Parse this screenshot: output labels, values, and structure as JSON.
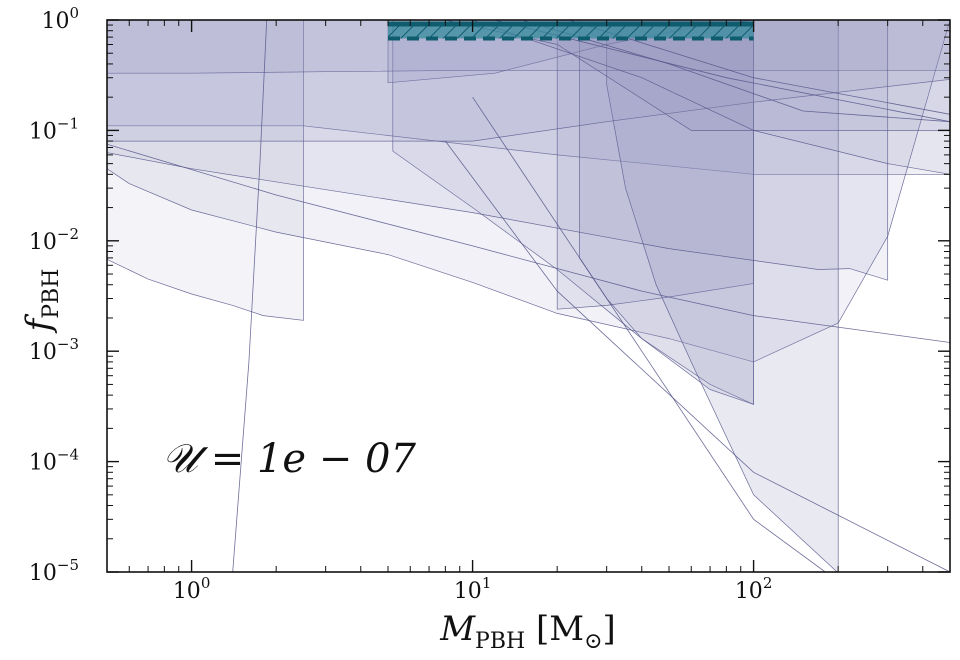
{
  "chart_data": {
    "type": "area",
    "x_scale": "log",
    "y_scale": "log",
    "xlim": [
      0.5,
      500
    ],
    "ylim": [
      1e-05,
      1
    ],
    "xlabel": {
      "main": "M",
      "sub": "PBH",
      "unit_open": " [M",
      "unit_sub": "⊙",
      "unit_close": "]"
    },
    "ylabel": {
      "main": "f",
      "sub": "PBH"
    },
    "x_ticks": [
      {
        "value": 1,
        "base": "10",
        "exp": "0"
      },
      {
        "value": 10,
        "base": "10",
        "exp": "1"
      },
      {
        "value": 100,
        "base": "10",
        "exp": "2"
      }
    ],
    "y_ticks": [
      {
        "value": 1e-05,
        "base": "10",
        "exp": "−5"
      },
      {
        "value": 0.0001,
        "base": "10",
        "exp": "−4"
      },
      {
        "value": 0.001,
        "base": "10",
        "exp": "−3"
      },
      {
        "value": 0.01,
        "base": "10",
        "exp": "−2"
      },
      {
        "value": 0.1,
        "base": "10",
        "exp": "−1"
      },
      {
        "value": 1,
        "base": "10",
        "exp": "0"
      }
    ],
    "annotation": "𝒰 = 1e − 07",
    "colors": {
      "constraint_fill": "#8f8fbd",
      "constraint_line": "#55558a",
      "band_fill": "#1f7a8c",
      "band_line": "#0f5c6e"
    },
    "constraints": [
      {
        "opacity": 0.14,
        "points": [
          [
            0.5,
            0.11
          ],
          [
            0.9,
            0.11
          ],
          [
            2.5,
            0.11
          ],
          [
            5,
            0.09
          ],
          [
            20,
            0.06
          ],
          [
            100,
            0.04
          ],
          [
            500,
            0.04
          ],
          [
            500,
            1
          ],
          [
            0.5,
            1
          ]
        ]
      },
      {
        "opacity": 0.1,
        "points": [
          [
            0.5,
            0.0068
          ],
          [
            0.7,
            0.0045
          ],
          [
            1.0,
            0.0033
          ],
          [
            1.4,
            0.0026
          ],
          [
            1.8,
            0.0021
          ],
          [
            2.5,
            0.0019
          ],
          [
            2.5,
            1
          ],
          [
            0.5,
            1
          ]
        ]
      },
      {
        "opacity": 0.12,
        "points": [
          [
            0.5,
            0.045
          ],
          [
            0.6,
            0.033
          ],
          [
            1.0,
            0.019
          ],
          [
            2,
            0.012
          ],
          [
            5,
            0.0075
          ],
          [
            10,
            0.0042
          ],
          [
            20,
            0.0022
          ],
          [
            50,
            0.0013
          ],
          [
            100,
            0.0008
          ],
          [
            200,
            0.0018
          ],
          [
            300,
            0.011
          ],
          [
            500,
            1
          ],
          [
            0.5,
            1
          ]
        ]
      },
      {
        "opacity": 0.12,
        "points": [
          [
            5.2,
            0.065
          ],
          [
            10,
            0.02
          ],
          [
            20,
            0.0055
          ],
          [
            40,
            0.0013
          ],
          [
            70,
            0.0005
          ],
          [
            100,
            0.00033
          ],
          [
            100,
            1
          ],
          [
            5.2,
            1
          ]
        ]
      },
      {
        "opacity": 0.16,
        "points": [
          [
            20,
            0.0024
          ],
          [
            30,
            0.0026
          ],
          [
            50,
            0.0031
          ],
          [
            100,
            0.0041
          ],
          [
            100,
            1
          ],
          [
            20,
            1
          ]
        ]
      },
      {
        "opacity": 0.18,
        "points": [
          [
            24,
            0.007
          ],
          [
            30,
            0.003
          ],
          [
            40,
            0.0013
          ],
          [
            70,
            0.00045
          ],
          [
            100,
            0.00033
          ],
          [
            100,
            1
          ],
          [
            24,
            1
          ]
        ]
      },
      {
        "opacity": 0.2,
        "points": [
          [
            30,
            0.26
          ],
          [
            35,
            0.03
          ],
          [
            45,
            0.004
          ],
          [
            60,
            0.0008
          ],
          [
            100,
            5e-05
          ],
          [
            200,
            9.8e-06
          ],
          [
            200,
            1
          ],
          [
            30,
            1
          ]
        ]
      },
      {
        "opacity": 0.18,
        "points": [
          [
            5,
            1
          ],
          [
            5,
            0.27
          ],
          [
            12,
            0.33
          ],
          [
            30,
            0.6
          ],
          [
            60,
            0.85
          ],
          [
            100,
            1
          ]
        ]
      },
      {
        "opacity": 0.16,
        "points": [
          [
            0.5,
            0.33
          ],
          [
            1,
            0.33
          ],
          [
            3,
            0.34
          ],
          [
            10,
            0.35
          ],
          [
            50,
            0.35
          ],
          [
            150,
            0.35
          ],
          [
            500,
            0.35
          ],
          [
            500,
            1
          ],
          [
            0.5,
            1
          ]
        ]
      },
      {
        "opacity": 0.14,
        "points": [
          [
            0.5,
            0.08
          ],
          [
            5,
            0.08
          ],
          [
            10,
            0.08
          ],
          [
            30,
            0.12
          ],
          [
            100,
            0.18
          ],
          [
            300,
            0.25
          ],
          [
            500,
            0.29
          ],
          [
            500,
            1
          ],
          [
            0.5,
            1
          ]
        ]
      },
      {
        "opacity": 0.12,
        "points": [
          [
            0.5,
            0.063
          ],
          [
            1,
            0.045
          ],
          [
            10,
            0.018
          ],
          [
            50,
            0.0085
          ],
          [
            170,
            0.0055
          ],
          [
            220,
            0.0056
          ],
          [
            300,
            0.0044
          ],
          [
            300,
            1
          ],
          [
            0.5,
            1
          ]
        ]
      },
      {
        "opacity": 0.16,
        "points": [
          [
            8,
            1
          ],
          [
            20,
            0.6
          ],
          [
            60,
            0.1
          ],
          [
            100,
            0.1
          ],
          [
            200,
            0.1
          ],
          [
            500,
            0.1
          ],
          [
            500,
            1
          ]
        ]
      },
      {
        "opacity": 0.1,
        "points": [
          [
            10,
            1
          ],
          [
            40,
            0.3
          ],
          [
            100,
            0.1
          ],
          [
            300,
            0.05
          ],
          [
            500,
            0.04
          ],
          [
            500,
            1
          ]
        ]
      }
    ],
    "lines": [
      {
        "points": [
          [
            1.4,
            1e-05
          ],
          [
            1.6,
            0.0008
          ],
          [
            1.75,
            0.05
          ],
          [
            1.85,
            1
          ]
        ]
      },
      {
        "points": [
          [
            0.5,
            0.075
          ],
          [
            2,
            0.026
          ],
          [
            10,
            0.009
          ],
          [
            40,
            0.0035
          ],
          [
            100,
            0.0021
          ],
          [
            500,
            0.0012
          ]
        ]
      },
      {
        "points": [
          [
            10,
            0.2
          ],
          [
            40,
            0.001
          ],
          [
            100,
            3e-05
          ],
          [
            180,
            1e-05
          ]
        ]
      },
      {
        "points": [
          [
            8,
            0.08
          ],
          [
            20,
            0.0035
          ],
          [
            100,
            8e-05
          ],
          [
            500,
            1e-05
          ]
        ]
      },
      {
        "points": [
          [
            15,
            1
          ],
          [
            50,
            0.4
          ],
          [
            150,
            0.15
          ],
          [
            500,
            0.12
          ]
        ]
      },
      {
        "points": [
          [
            12,
            1
          ],
          [
            80,
            0.3
          ],
          [
            500,
            0.12
          ]
        ]
      },
      {
        "points": [
          [
            22,
            1
          ],
          [
            100,
            0.3
          ],
          [
            500,
            0.14
          ]
        ]
      }
    ],
    "band": {
      "x_range": [
        5.0,
        100
      ],
      "upper": 0.92,
      "lower": 0.68
    }
  }
}
